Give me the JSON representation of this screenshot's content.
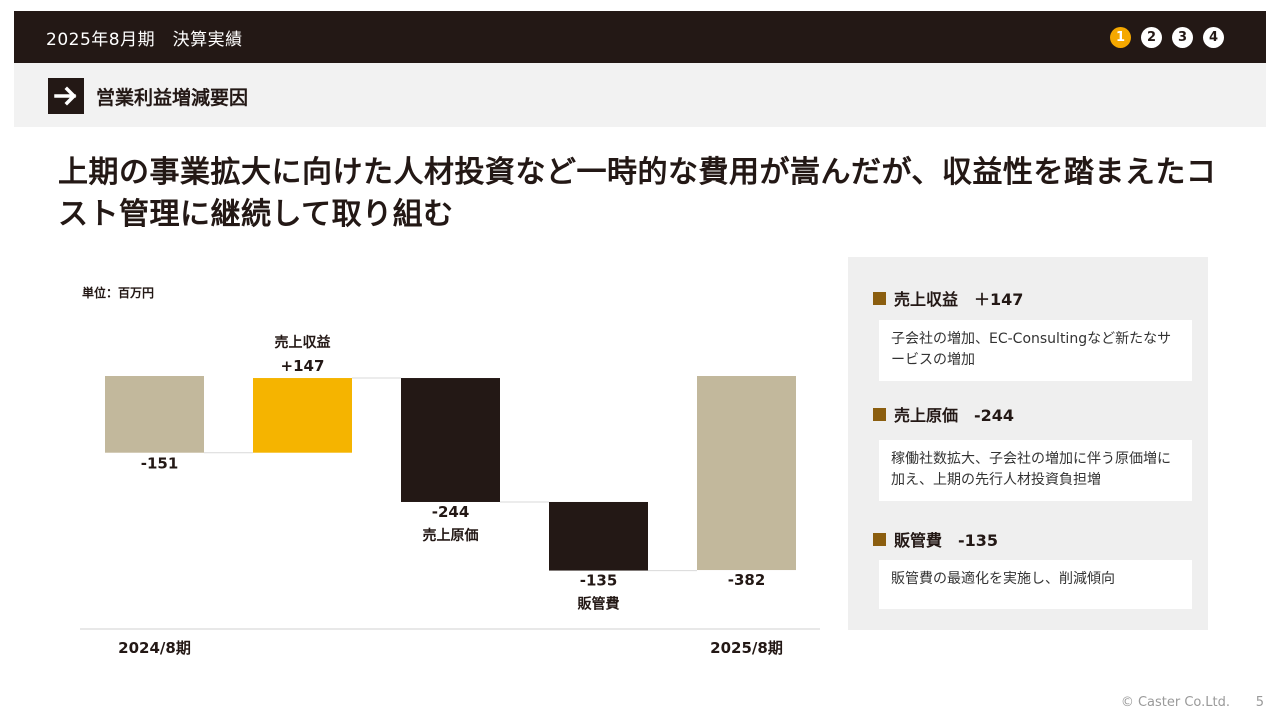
{
  "header": {
    "title": "2025年8月期　決算実績",
    "pages": [
      "1",
      "2",
      "3",
      "4"
    ],
    "active_page": 0
  },
  "section": {
    "title": "営業利益増減要因",
    "icon": "arrow-right-icon"
  },
  "headline": "上期の事業拡大に向けた人材投資など一時的な費用が嵩んだが、収益性を踏まえたコスト管理に継続して取り組む",
  "chart_data": {
    "type": "bar",
    "subtype": "waterfall",
    "unit_label": "単位：百万円",
    "steps": [
      {
        "category": "2024/8期",
        "value": -151,
        "value_label": "-151",
        "kind": "total"
      },
      {
        "category": "売上収益",
        "value": 147,
        "value_label": "+147",
        "kind": "delta"
      },
      {
        "category": "売上原価",
        "value": -244,
        "value_label": "-244",
        "kind": "delta"
      },
      {
        "category": "販管費",
        "value": -135,
        "value_label": "-135",
        "kind": "delta"
      },
      {
        "category": "2025/8期",
        "value": -382,
        "value_label": "-382",
        "kind": "total"
      }
    ],
    "colors": {
      "total": "#c2b89c",
      "increase": "#f5b400",
      "decrease": "#231815",
      "connector": "#d9d9d9"
    }
  },
  "factors": [
    {
      "title": "売上収益　＋147",
      "detail": "子会社の増加、EC-Consultingなど新たなサービスの増加"
    },
    {
      "title": "売上原価　-244",
      "detail": "稼働社数拡大、子会社の増加に伴う原価増に加え、上期の先行人材投資負担増"
    },
    {
      "title": "販管費　-135",
      "detail": "販管費の最適化を実施し、削減傾向"
    }
  ],
  "footer": {
    "copyright": "© Caster Co.Ltd.",
    "page_number": "5"
  }
}
